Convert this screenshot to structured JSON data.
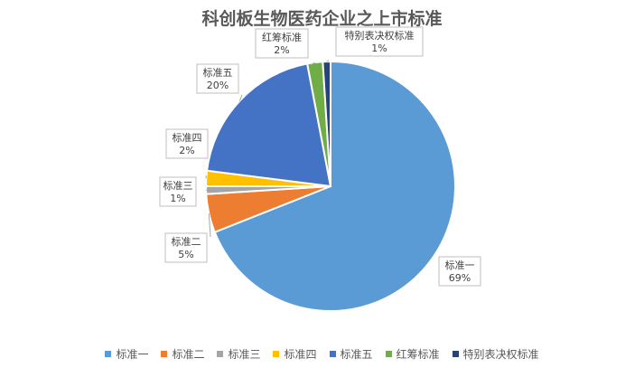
{
  "chart_data": {
    "type": "pie",
    "title": "科创板生物医药企业之上市标准",
    "slices": [
      {
        "name": "标准一",
        "value": 69,
        "label": "69%",
        "color": "#5B9BD5"
      },
      {
        "name": "标准二",
        "value": 5,
        "label": "5%",
        "color": "#ED7D31"
      },
      {
        "name": "标准三",
        "value": 1,
        "label": "1%",
        "color": "#A5A5A5"
      },
      {
        "name": "标准四",
        "value": 2,
        "label": "2%",
        "color": "#FFC000"
      },
      {
        "name": "标准五",
        "value": 20,
        "label": "20%",
        "color": "#4472C4"
      },
      {
        "name": "红筹标准",
        "value": 2,
        "label": "2%",
        "color": "#70AD47"
      },
      {
        "name": "特别表决权标准",
        "value": 1,
        "label": "1%",
        "color": "#264478"
      }
    ],
    "legend_position": "bottom"
  }
}
